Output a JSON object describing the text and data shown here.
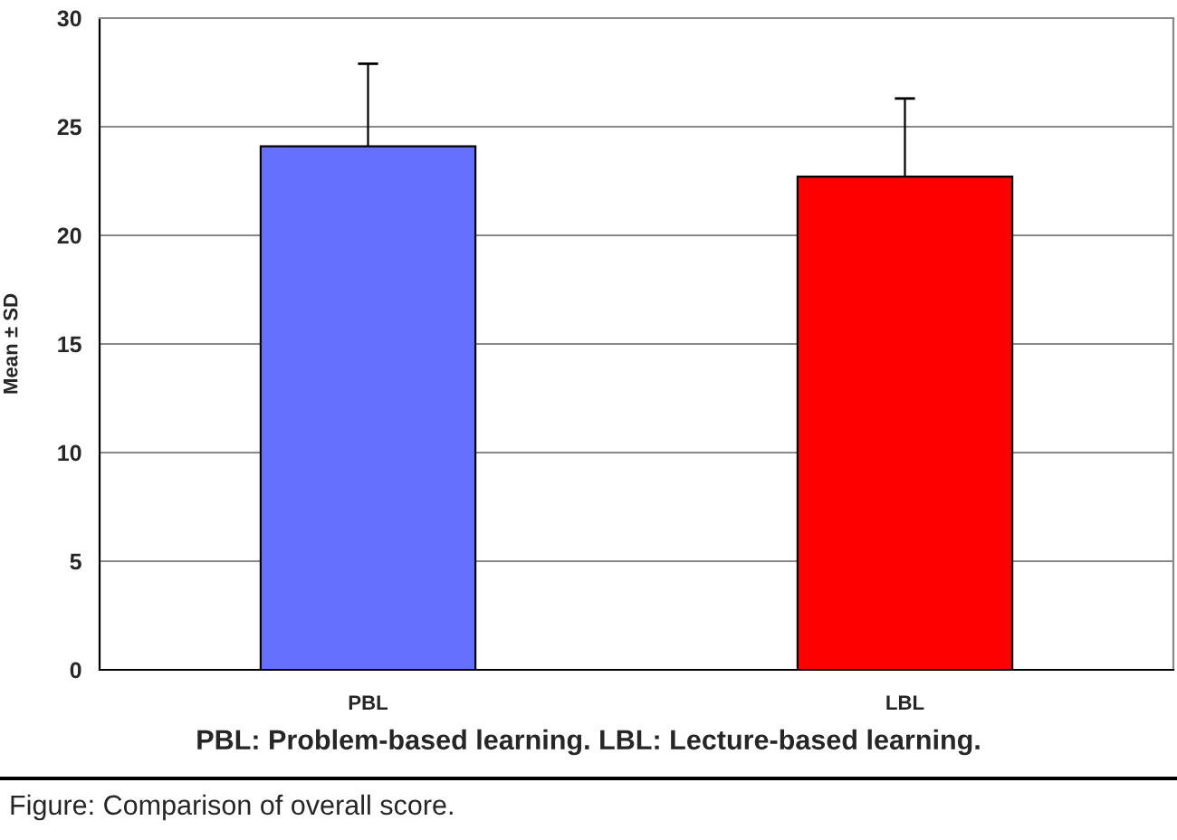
{
  "chart_data": {
    "type": "bar",
    "categories": [
      "PBL",
      "LBL"
    ],
    "values": [
      24.1,
      22.7
    ],
    "errors": [
      3.8,
      3.6
    ],
    "colors": [
      "#6670ff",
      "#ff0000"
    ],
    "ylabel": "Mean ± SD",
    "ylim": [
      0,
      30
    ],
    "yticks": [
      0,
      5,
      10,
      15,
      20,
      25,
      30
    ],
    "grid": "y",
    "legend": false,
    "annotations": [
      "PBL: Problem-based learning. LBL: Lecture-based learning.",
      "Figure: Comparison of overall score."
    ]
  }
}
